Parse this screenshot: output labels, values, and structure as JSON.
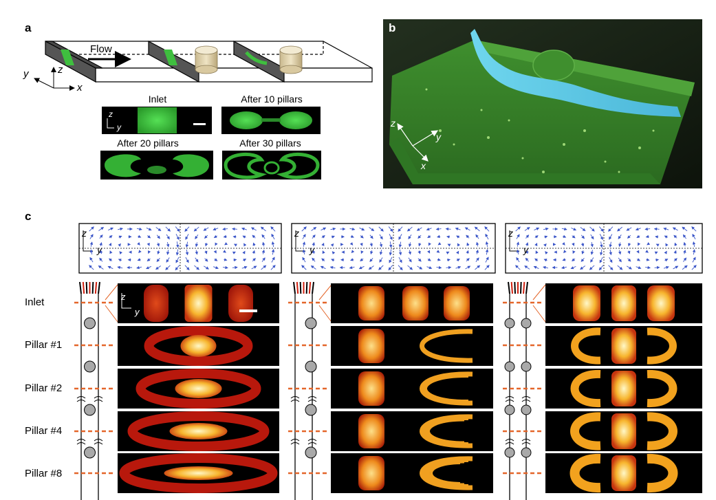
{
  "panels": {
    "a": {
      "letter": "a",
      "flow_label": "Flow",
      "axes": {
        "x": "x",
        "y": "y",
        "z": "z"
      },
      "insets": [
        {
          "title": "Inlet"
        },
        {
          "title": "After 10 pillars"
        },
        {
          "title": "After 20 pillars"
        },
        {
          "title": "After 30 pillars"
        }
      ],
      "inset_axes": {
        "z": "z",
        "y": "y"
      }
    },
    "b": {
      "letter": "b",
      "axes": {
        "x": "x",
        "y": "y",
        "z": "z"
      }
    },
    "c": {
      "letter": "c",
      "axes": {
        "z": "z",
        "y": "y"
      },
      "row_labels": [
        "Inlet",
        "Pillar #1",
        "Pillar #2",
        "Pillar #4",
        "Pillar #8"
      ]
    }
  },
  "colors": {
    "green_fluor": "#3fbf3f",
    "cyan_fluor": "#59c9e6",
    "hot_bright": "#fff3a0",
    "hot_mid": "#f2a21e",
    "hot_dark": "#b8180c",
    "cut_line": "#e4662a",
    "pillar_gray": "#a9a9a9",
    "arrow_blue": "#3a55c8"
  }
}
